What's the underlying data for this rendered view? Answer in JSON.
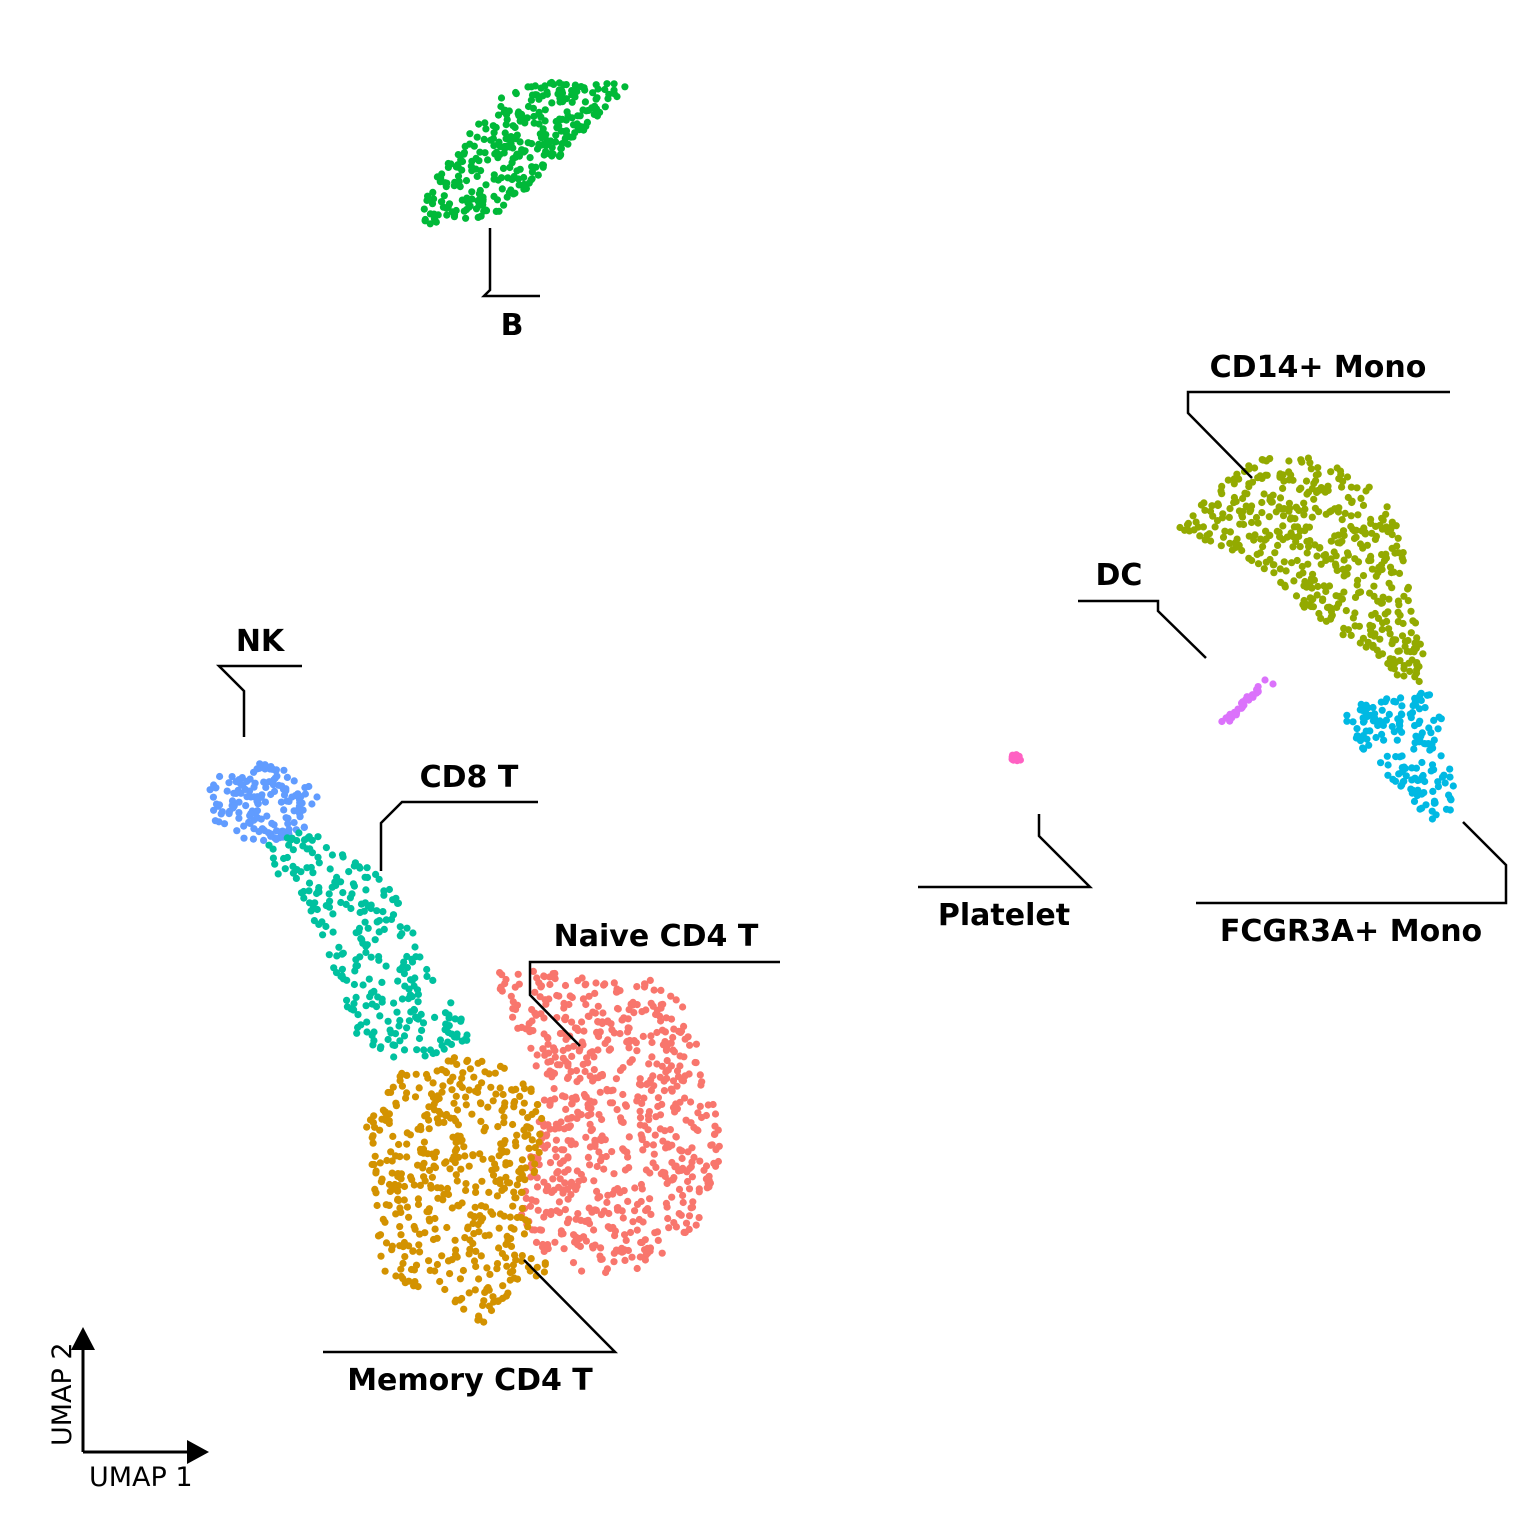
{
  "chart_data": {
    "type": "scatter",
    "title": "",
    "xlabel": "UMAP 1",
    "ylabel": "UMAP 2",
    "grid": false,
    "legend": "none",
    "point_labels": "direct cluster labels with leader lines",
    "series": [
      {
        "name": "B",
        "color": "#00B938",
        "point_count": 340
      },
      {
        "name": "CD14+ Mono",
        "color": "#93AA00",
        "point_count": 480
      },
      {
        "name": "DC",
        "color": "#DB72FB",
        "point_count": 32
      },
      {
        "name": "Platelet",
        "color": "#FF61C3",
        "point_count": 14
      },
      {
        "name": "FCGR3A+ Mono",
        "color": "#00B9E3",
        "point_count": 160
      },
      {
        "name": "NK",
        "color": "#619CFF",
        "point_count": 155
      },
      {
        "name": "CD8 T",
        "color": "#00C19F",
        "point_count": 270
      },
      {
        "name": "Naive CD4 T",
        "color": "#F8766D",
        "point_count": 700
      },
      {
        "name": "Memory CD4 T",
        "color": "#D39200",
        "point_count": 480
      }
    ]
  }
}
